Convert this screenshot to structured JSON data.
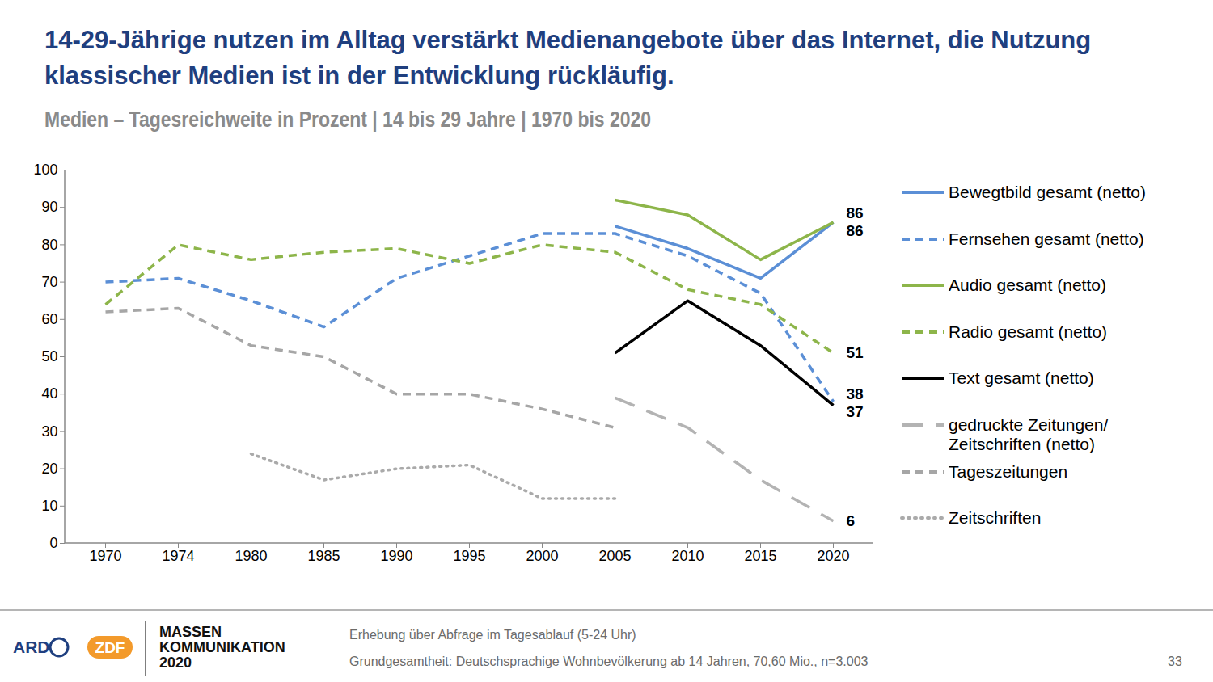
{
  "chart_data": {
    "type": "line",
    "title": "14-29-Jährige nutzen im Alltag verstärkt Medienangebote über das Internet, die Nutzung klassischer Medien ist in der Entwicklung rückläufig.",
    "subtitle": "Medien – Tagesreichweite in Prozent | 14 bis 29 Jahre | 1970 bis 2020",
    "categories": [
      "1970",
      "1974",
      "1980",
      "1985",
      "1990",
      "1995",
      "2000",
      "2005",
      "2010",
      "2015",
      "2020"
    ],
    "series": [
      {
        "name": "Bewegtbild gesamt (netto)",
        "color": "#5b8fd6",
        "line_style": "solid",
        "values": [
          null,
          null,
          null,
          null,
          null,
          null,
          null,
          85,
          79,
          71,
          86
        ]
      },
      {
        "name": "Fernsehen gesamt (netto)",
        "color": "#5b8fd6",
        "line_style": "dashed",
        "values": [
          70,
          71,
          65,
          58,
          71,
          77,
          83,
          83,
          77,
          67,
          38
        ]
      },
      {
        "name": "Audio gesamt (netto)",
        "color": "#8db54a",
        "line_style": "solid",
        "values": [
          null,
          null,
          null,
          null,
          null,
          null,
          null,
          92,
          88,
          76,
          86
        ]
      },
      {
        "name": "Radio gesamt (netto)",
        "color": "#8db54a",
        "line_style": "dashed",
        "values": [
          64,
          80,
          76,
          78,
          79,
          75,
          80,
          78,
          68,
          64,
          51
        ]
      },
      {
        "name": "Text gesamt (netto)",
        "color": "#000000",
        "line_style": "solid",
        "values": [
          null,
          null,
          null,
          null,
          null,
          null,
          null,
          51,
          65,
          53,
          37
        ]
      },
      {
        "name": "gedruckte Zeitungen/Zeitschriften (netto)",
        "color": "#b3b3b3",
        "line_style": "longdash",
        "values": [
          null,
          null,
          null,
          null,
          null,
          null,
          null,
          39,
          31,
          17,
          6
        ]
      },
      {
        "name": "Tageszeitungen",
        "color": "#a6a6a6",
        "line_style": "dashed",
        "values": [
          62,
          63,
          53,
          50,
          40,
          40,
          36,
          31,
          null,
          null,
          null
        ]
      },
      {
        "name": "Zeitschriften",
        "color": "#aaaaaa",
        "line_style": "dotted",
        "values": [
          null,
          null,
          24,
          17,
          20,
          21,
          12,
          12,
          null,
          null,
          null
        ]
      }
    ],
    "ylim": [
      0,
      100
    ],
    "yticks": [
      0,
      10,
      20,
      30,
      40,
      50,
      60,
      70,
      80,
      90,
      100
    ],
    "grid": false,
    "data_labels": true,
    "legend": "right"
  },
  "footer": {
    "logos": [
      "ARD",
      "ZDF"
    ],
    "publication": [
      "MASSEN",
      "KOMMUNIKATION",
      "2020"
    ],
    "notes": [
      "Erhebung über Abfrage im Tagesablauf (5-24 Uhr)",
      "Grundgesamtheit: Deutschsprachige Wohnbevölkerung ab 14 Jahren, 70,60 Mio., n=3.003"
    ],
    "page": "33"
  }
}
